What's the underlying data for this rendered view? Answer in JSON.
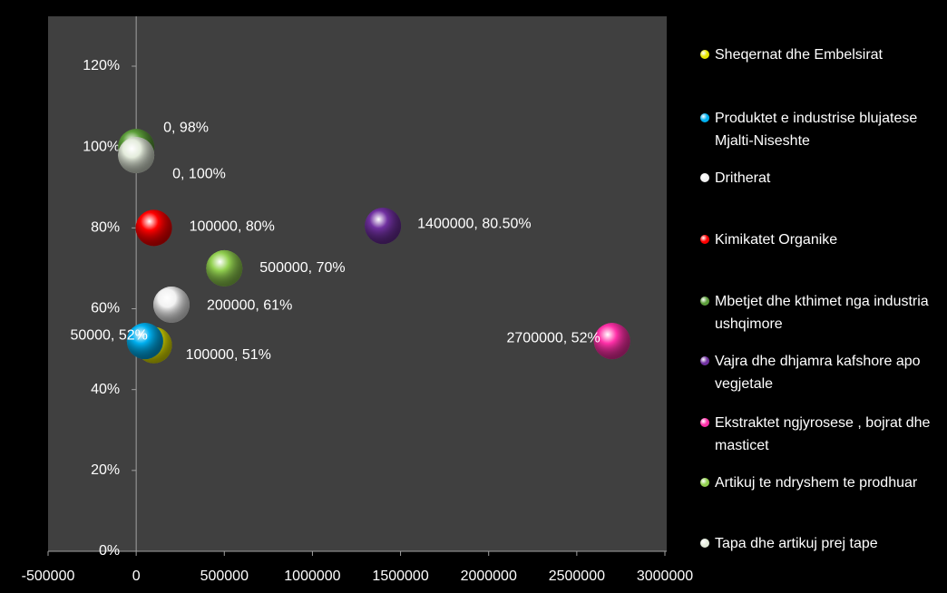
{
  "chart_data": {
    "type": "scatter",
    "xlim": [
      -500000,
      3000000
    ],
    "xticks": [
      -500000,
      0,
      500000,
      1000000,
      1500000,
      2000000,
      2500000,
      3000000
    ],
    "ylim": [
      0,
      120
    ],
    "yticks": [
      {
        "value": 0,
        "label": "0%"
      },
      {
        "value": 20,
        "label": "20%"
      },
      {
        "value": 40,
        "label": "40%"
      },
      {
        "value": 60,
        "label": "60%"
      },
      {
        "value": 80,
        "label": "80%"
      },
      {
        "value": 100,
        "label": "100%"
      },
      {
        "value": 120,
        "label": "120%"
      }
    ],
    "grid": false,
    "legend": "right",
    "series": [
      {
        "name": "Sheqernat dhe Embelsirat",
        "color": "#e6e600",
        "x": [
          100000
        ],
        "values": [
          51
        ],
        "value_labels": [
          "100000, 51%"
        ]
      },
      {
        "name": "Produktet e industrise blujatese Mjalti-Niseshte",
        "color": "#00b0f0",
        "x": [
          50000
        ],
        "values": [
          52
        ],
        "value_labels": [
          "50000, 52%"
        ]
      },
      {
        "name": "Dritherat",
        "color": "#f2f2f2",
        "x": [
          200000
        ],
        "values": [
          61
        ],
        "value_labels": [
          "200000, 61%"
        ]
      },
      {
        "name": "Kimikatet Organike",
        "color": "#ff0000",
        "x": [
          100000
        ],
        "values": [
          80
        ],
        "value_labels": [
          "100000, 80%"
        ]
      },
      {
        "name": "Mbetjet dhe kthimet nga industria ushqimore",
        "color": "#5c9e3a",
        "x": [
          0
        ],
        "values": [
          100
        ],
        "value_labels": [
          "0, 100%"
        ]
      },
      {
        "name": "Vajra dhe dhjamra kafshore apo vegjetale",
        "color": "#7030a0",
        "x": [
          1400000
        ],
        "values": [
          80.5
        ],
        "value_labels": [
          "1400000, 80.50%"
        ]
      },
      {
        "name": "Ekstraktet ngjyrosese , bojrat dhe masticet",
        "color": "#ff30a8",
        "x": [
          2700000
        ],
        "values": [
          52
        ],
        "value_labels": [
          "2700000, 52%"
        ]
      },
      {
        "name": "Artikuj te ndryshem te prodhuar",
        "color": "#92d050",
        "x": [
          500000
        ],
        "values": [
          70
        ],
        "value_labels": [
          "500000, 70%"
        ]
      },
      {
        "name": "Tapa dhe artikuj prej tape",
        "color": "#e4ecdc",
        "x": [
          0
        ],
        "values": [
          98
        ],
        "value_labels": [
          "0, 98%"
        ]
      }
    ]
  }
}
